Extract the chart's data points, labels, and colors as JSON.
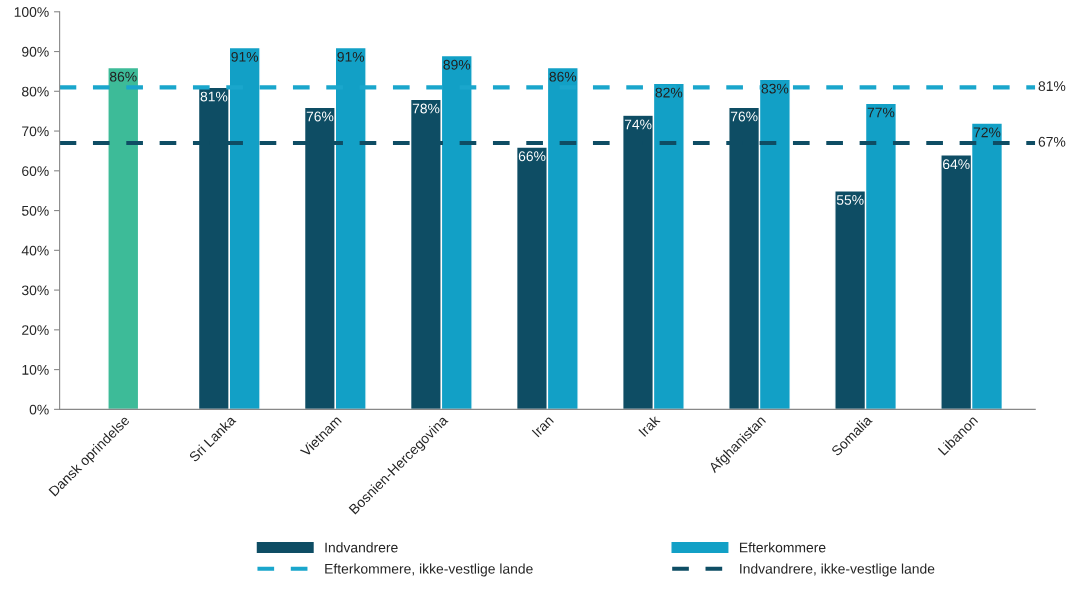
{
  "chart_data": {
    "type": "bar",
    "categories": [
      "Dansk oprindelse",
      "Sri Lanka",
      "Vietnam",
      "Bosnien-Hercegovina",
      "Iran",
      "Irak",
      "Afghanistan",
      "Somalia",
      "Libanon"
    ],
    "series": [
      {
        "color": "#3dbb98",
        "values": [
          86,
          null,
          null,
          null,
          null,
          null,
          null,
          null,
          null
        ],
        "value_labels": [
          "86%",
          null,
          null,
          null,
          null,
          null,
          null,
          null,
          null
        ]
      },
      {
        "name": "Indvandrere",
        "color": "#0e4d64",
        "values": [
          null,
          81,
          76,
          78,
          66,
          74,
          76,
          55,
          64
        ],
        "value_labels": [
          null,
          "81%",
          "76%",
          "78%",
          "66%",
          "74%",
          "76%",
          "55%",
          "64%"
        ]
      },
      {
        "name": "Efterkommere",
        "color": "#12a0c6",
        "values": [
          null,
          91,
          91,
          89,
          86,
          82,
          83,
          77,
          72
        ],
        "value_labels": [
          null,
          "91%",
          "91%",
          "89%",
          "86%",
          "82%",
          "83%",
          "77%",
          "72%"
        ]
      }
    ],
    "ref_lines": [
      {
        "axis": "y",
        "value": 81,
        "label": "Efterkommere, ikke-vestlige lande",
        "color": "#1aa6cc",
        "line_style": "dashed"
      },
      {
        "axis": "y",
        "value": 67,
        "label": "Indvandrere, ikke-vestlige lande",
        "color": "#0e4d64",
        "line_style": "dashed"
      }
    ],
    "annotations": [
      "81%",
      "67%"
    ],
    "ylim": [
      0,
      100
    ],
    "yticks": [
      {
        "value": 0,
        "label": "0%"
      },
      {
        "value": 10,
        "label": "10%"
      },
      {
        "value": 20,
        "label": "20%"
      },
      {
        "value": 30,
        "label": "30%"
      },
      {
        "value": 40,
        "label": "40%"
      },
      {
        "value": 50,
        "label": "50%"
      },
      {
        "value": 60,
        "label": "60%"
      },
      {
        "value": 70,
        "label": "70%"
      },
      {
        "value": 80,
        "label": "80%"
      },
      {
        "value": 90,
        "label": "90%"
      },
      {
        "value": 100,
        "label": "100%"
      }
    ],
    "grid": false,
    "legend": "bottom"
  }
}
